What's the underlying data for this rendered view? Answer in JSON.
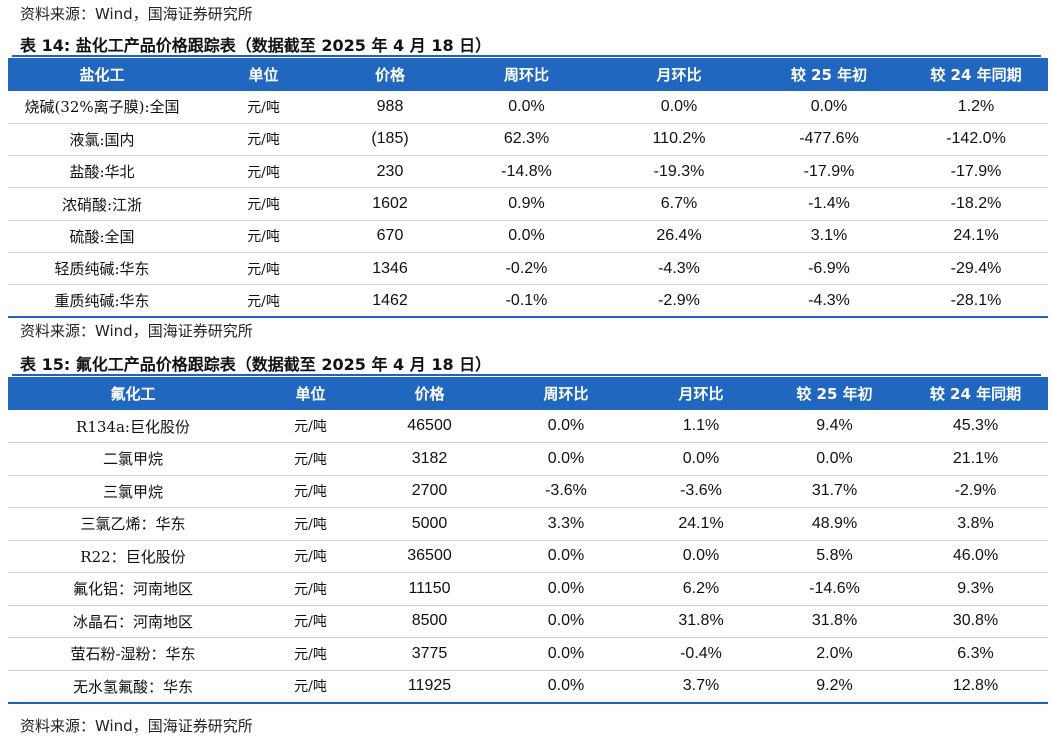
{
  "top_source": "资料来源：Wind，国海证券研究所",
  "table14": {
    "caption": "表 14:  盐化工产品价格跟踪表（数据截至 2025 年 4 月 18 日）",
    "headers": [
      "盐化工",
      "单位",
      "价格",
      "周环比",
      "月环比",
      "较 25 年初",
      "较 24 年同期"
    ],
    "rows": [
      [
        "烧碱(32%离子膜):全国",
        "元/吨",
        "988",
        "0.0%",
        "0.0%",
        "0.0%",
        "1.2%"
      ],
      [
        "液氯:国内",
        "元/吨",
        "(185)",
        "62.3%",
        "110.2%",
        "-477.6%",
        "-142.0%"
      ],
      [
        "盐酸:华北",
        "元/吨",
        "230",
        "-14.8%",
        "-19.3%",
        "-17.9%",
        "-17.9%"
      ],
      [
        "浓硝酸:江浙",
        "元/吨",
        "1602",
        "0.9%",
        "6.7%",
        "-1.4%",
        "-18.2%"
      ],
      [
        "硫酸:全国",
        "元/吨",
        "670",
        "0.0%",
        "26.4%",
        "3.1%",
        "24.1%"
      ],
      [
        "轻质纯碱:华东",
        "元/吨",
        "1346",
        "-0.2%",
        "-4.3%",
        "-6.9%",
        "-29.4%"
      ],
      [
        "重质纯碱:华东",
        "元/吨",
        "1462",
        "-0.1%",
        "-2.9%",
        "-4.3%",
        "-28.1%"
      ]
    ],
    "source": "资料来源：Wind，国海证券研究所"
  },
  "table15": {
    "caption": "表 15:  氟化工产品价格跟踪表（数据截至 2025 年 4 月 18 日）",
    "headers": [
      "氟化工",
      "单位",
      "价格",
      "周环比",
      "月环比",
      "较 25 年初",
      "较 24 年同期"
    ],
    "rows": [
      [
        "R134a:巨化股份",
        "元/吨",
        "46500",
        "0.0%",
        "1.1%",
        "9.4%",
        "45.3%"
      ],
      [
        "二氯甲烷",
        "元/吨",
        "3182",
        "0.0%",
        "0.0%",
        "0.0%",
        "21.1%"
      ],
      [
        "三氯甲烷",
        "元/吨",
        "2700",
        "-3.6%",
        "-3.6%",
        "31.7%",
        "-2.9%"
      ],
      [
        "三氯乙烯：华东",
        "元/吨",
        "5000",
        "3.3%",
        "24.1%",
        "48.9%",
        "3.8%"
      ],
      [
        "R22：巨化股份",
        "元/吨",
        "36500",
        "0.0%",
        "0.0%",
        "5.8%",
        "46.0%"
      ],
      [
        "氟化铝：河南地区",
        "元/吨",
        "11150",
        "0.0%",
        "6.2%",
        "-14.6%",
        "9.3%"
      ],
      [
        "冰晶石：河南地区",
        "元/吨",
        "8500",
        "0.0%",
        "31.8%",
        "31.8%",
        "30.8%"
      ],
      [
        "萤石粉-湿粉：华东",
        "元/吨",
        "3775",
        "0.0%",
        "-0.4%",
        "2.0%",
        "6.3%"
      ],
      [
        "无水氢氟酸：华东",
        "元/吨",
        "11925",
        "0.0%",
        "3.7%",
        "9.2%",
        "12.8%"
      ]
    ],
    "source": "资料来源：Wind，国海证券研究所"
  }
}
